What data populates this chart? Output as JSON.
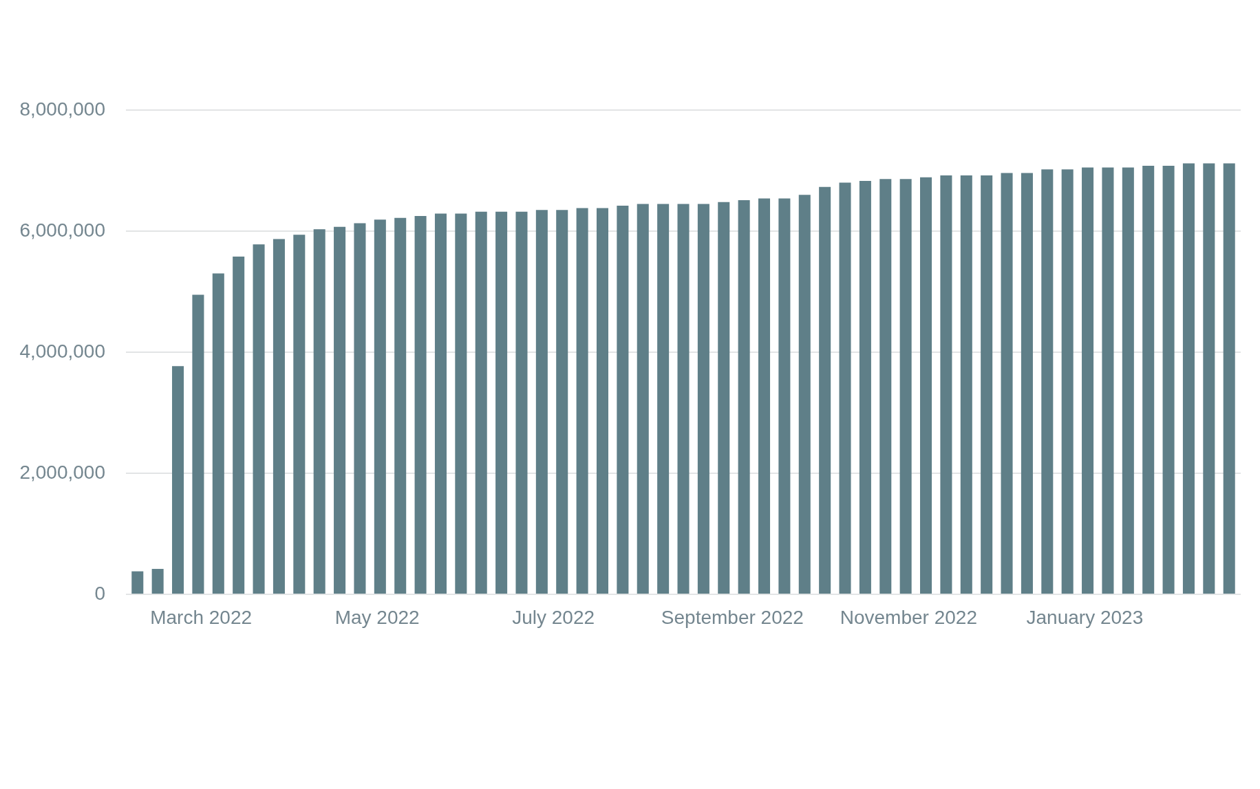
{
  "chart_data": {
    "type": "bar",
    "color": "#5f7f88",
    "x": [
      "2022-02-07",
      "2022-02-14",
      "2022-02-21",
      "2022-02-28",
      "2022-03-07",
      "2022-03-14",
      "2022-03-21",
      "2022-03-28",
      "2022-04-04",
      "2022-04-11",
      "2022-04-18",
      "2022-04-25",
      "2022-05-02",
      "2022-05-09",
      "2022-05-16",
      "2022-05-23",
      "2022-05-30",
      "2022-06-06",
      "2022-06-13",
      "2022-06-20",
      "2022-06-27",
      "2022-07-04",
      "2022-07-11",
      "2022-07-18",
      "2022-07-25",
      "2022-08-01",
      "2022-08-08",
      "2022-08-15",
      "2022-08-22",
      "2022-08-29",
      "2022-09-05",
      "2022-09-12",
      "2022-09-19",
      "2022-09-26",
      "2022-10-03",
      "2022-10-10",
      "2022-10-17",
      "2022-10-24",
      "2022-10-31",
      "2022-11-07",
      "2022-11-14",
      "2022-11-21",
      "2022-11-28",
      "2022-12-05",
      "2022-12-12",
      "2022-12-19",
      "2022-12-26",
      "2023-01-02",
      "2023-01-09",
      "2023-01-16",
      "2023-01-23",
      "2023-01-30",
      "2023-02-06",
      "2023-02-13",
      "2023-02-20"
    ],
    "values": [
      380000,
      420000,
      3770000,
      4950000,
      5300000,
      5580000,
      5780000,
      5870000,
      5940000,
      6030000,
      6070000,
      6130000,
      6190000,
      6220000,
      6250000,
      6290000,
      6290000,
      6320000,
      6320000,
      6320000,
      6350000,
      6350000,
      6380000,
      6380000,
      6420000,
      6450000,
      6450000,
      6450000,
      6450000,
      6480000,
      6510000,
      6540000,
      6540000,
      6600000,
      6730000,
      6800000,
      6830000,
      6860000,
      6860000,
      6890000,
      6920000,
      6920000,
      6920000,
      6960000,
      6960000,
      7020000,
      7020000,
      7050000,
      7050000,
      7050000,
      7080000,
      7080000,
      7120000,
      7120000,
      7120000
    ],
    "xlim": [
      "2022-02-03",
      "2023-02-24"
    ],
    "xticks": [
      {
        "value": "2022-03-01",
        "label": "March 2022"
      },
      {
        "value": "2022-05-01",
        "label": "May 2022"
      },
      {
        "value": "2022-07-01",
        "label": "July 2022"
      },
      {
        "value": "2022-09-01",
        "label": "September 2022"
      },
      {
        "value": "2022-11-01",
        "label": "November 2022"
      },
      {
        "value": "2023-01-01",
        "label": "January 2023"
      }
    ],
    "ylim": [
      0,
      8000000
    ],
    "yticks": [
      0,
      {
        "value": 2000000,
        "label": "2,000,000"
      },
      {
        "value": 4000000,
        "label": "4,000,000"
      },
      {
        "value": 6000000,
        "label": "6,000,000"
      },
      {
        "value": 8000000,
        "label": "8,000,000"
      }
    ],
    "grid": "y"
  }
}
